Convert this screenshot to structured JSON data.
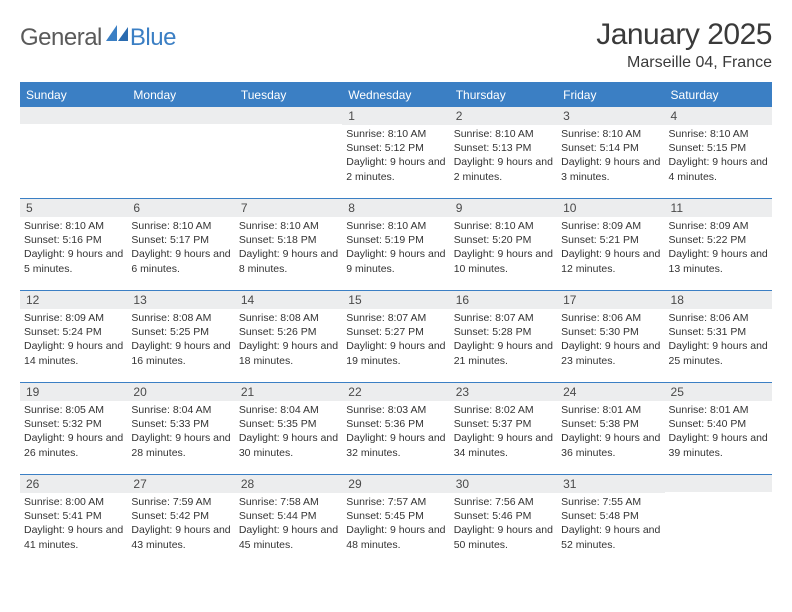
{
  "logo": {
    "general": "General",
    "blue": "Blue"
  },
  "title": "January 2025",
  "location": "Marseille 04, France",
  "colors": {
    "accent": "#3b7fc4",
    "header_bg": "#3b7fc4",
    "daynum_bg": "#ecedee",
    "text": "#333333"
  },
  "weekdays": [
    "Sunday",
    "Monday",
    "Tuesday",
    "Wednesday",
    "Thursday",
    "Friday",
    "Saturday"
  ],
  "weeks": [
    [
      null,
      null,
      null,
      {
        "n": "1",
        "sr": "8:10 AM",
        "ss": "5:12 PM",
        "dl": "9 hours and 2 minutes."
      },
      {
        "n": "2",
        "sr": "8:10 AM",
        "ss": "5:13 PM",
        "dl": "9 hours and 2 minutes."
      },
      {
        "n": "3",
        "sr": "8:10 AM",
        "ss": "5:14 PM",
        "dl": "9 hours and 3 minutes."
      },
      {
        "n": "4",
        "sr": "8:10 AM",
        "ss": "5:15 PM",
        "dl": "9 hours and 4 minutes."
      }
    ],
    [
      {
        "n": "5",
        "sr": "8:10 AM",
        "ss": "5:16 PM",
        "dl": "9 hours and 5 minutes."
      },
      {
        "n": "6",
        "sr": "8:10 AM",
        "ss": "5:17 PM",
        "dl": "9 hours and 6 minutes."
      },
      {
        "n": "7",
        "sr": "8:10 AM",
        "ss": "5:18 PM",
        "dl": "9 hours and 8 minutes."
      },
      {
        "n": "8",
        "sr": "8:10 AM",
        "ss": "5:19 PM",
        "dl": "9 hours and 9 minutes."
      },
      {
        "n": "9",
        "sr": "8:10 AM",
        "ss": "5:20 PM",
        "dl": "9 hours and 10 minutes."
      },
      {
        "n": "10",
        "sr": "8:09 AM",
        "ss": "5:21 PM",
        "dl": "9 hours and 12 minutes."
      },
      {
        "n": "11",
        "sr": "8:09 AM",
        "ss": "5:22 PM",
        "dl": "9 hours and 13 minutes."
      }
    ],
    [
      {
        "n": "12",
        "sr": "8:09 AM",
        "ss": "5:24 PM",
        "dl": "9 hours and 14 minutes."
      },
      {
        "n": "13",
        "sr": "8:08 AM",
        "ss": "5:25 PM",
        "dl": "9 hours and 16 minutes."
      },
      {
        "n": "14",
        "sr": "8:08 AM",
        "ss": "5:26 PM",
        "dl": "9 hours and 18 minutes."
      },
      {
        "n": "15",
        "sr": "8:07 AM",
        "ss": "5:27 PM",
        "dl": "9 hours and 19 minutes."
      },
      {
        "n": "16",
        "sr": "8:07 AM",
        "ss": "5:28 PM",
        "dl": "9 hours and 21 minutes."
      },
      {
        "n": "17",
        "sr": "8:06 AM",
        "ss": "5:30 PM",
        "dl": "9 hours and 23 minutes."
      },
      {
        "n": "18",
        "sr": "8:06 AM",
        "ss": "5:31 PM",
        "dl": "9 hours and 25 minutes."
      }
    ],
    [
      {
        "n": "19",
        "sr": "8:05 AM",
        "ss": "5:32 PM",
        "dl": "9 hours and 26 minutes."
      },
      {
        "n": "20",
        "sr": "8:04 AM",
        "ss": "5:33 PM",
        "dl": "9 hours and 28 minutes."
      },
      {
        "n": "21",
        "sr": "8:04 AM",
        "ss": "5:35 PM",
        "dl": "9 hours and 30 minutes."
      },
      {
        "n": "22",
        "sr": "8:03 AM",
        "ss": "5:36 PM",
        "dl": "9 hours and 32 minutes."
      },
      {
        "n": "23",
        "sr": "8:02 AM",
        "ss": "5:37 PM",
        "dl": "9 hours and 34 minutes."
      },
      {
        "n": "24",
        "sr": "8:01 AM",
        "ss": "5:38 PM",
        "dl": "9 hours and 36 minutes."
      },
      {
        "n": "25",
        "sr": "8:01 AM",
        "ss": "5:40 PM",
        "dl": "9 hours and 39 minutes."
      }
    ],
    [
      {
        "n": "26",
        "sr": "8:00 AM",
        "ss": "5:41 PM",
        "dl": "9 hours and 41 minutes."
      },
      {
        "n": "27",
        "sr": "7:59 AM",
        "ss": "5:42 PM",
        "dl": "9 hours and 43 minutes."
      },
      {
        "n": "28",
        "sr": "7:58 AM",
        "ss": "5:44 PM",
        "dl": "9 hours and 45 minutes."
      },
      {
        "n": "29",
        "sr": "7:57 AM",
        "ss": "5:45 PM",
        "dl": "9 hours and 48 minutes."
      },
      {
        "n": "30",
        "sr": "7:56 AM",
        "ss": "5:46 PM",
        "dl": "9 hours and 50 minutes."
      },
      {
        "n": "31",
        "sr": "7:55 AM",
        "ss": "5:48 PM",
        "dl": "9 hours and 52 minutes."
      },
      null
    ]
  ],
  "labels": {
    "sunrise": "Sunrise:",
    "sunset": "Sunset:",
    "daylight": "Daylight:"
  }
}
